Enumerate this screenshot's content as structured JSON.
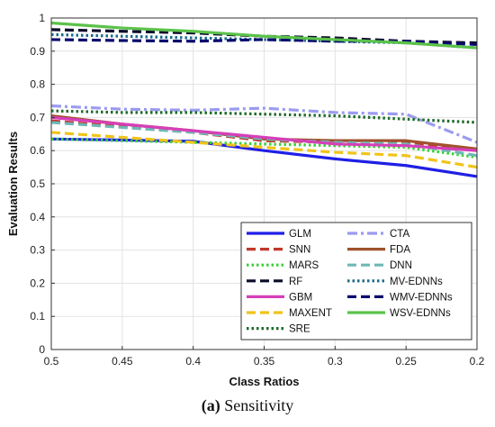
{
  "chart_data": {
    "type": "line",
    "xlabel": "Class Ratios",
    "ylabel": "Evaluation Results",
    "x": [
      0.5,
      0.45,
      0.4,
      0.35,
      0.3,
      0.25,
      0.2
    ],
    "xlim": [
      0.5,
      0.2
    ],
    "ylim": [
      0,
      1
    ],
    "x_ticks": [
      "0.5",
      "0.45",
      "0.4",
      "0.35",
      "0.3",
      "0.25",
      "0.2"
    ],
    "y_ticks": [
      "0",
      "0.1",
      "0.2",
      "0.3",
      "0.4",
      "0.5",
      "0.6",
      "0.7",
      "0.8",
      "0.9",
      "1"
    ],
    "grid": true,
    "legend_position": "bottom-right",
    "series": [
      {
        "name": "GLM",
        "color": "#1f1fe6",
        "dash": "solid",
        "values": [
          0.635,
          0.632,
          0.628,
          0.6,
          0.575,
          0.555,
          0.522
        ]
      },
      {
        "name": "CTA",
        "color": "#9b9bf0",
        "dash": "dashdot",
        "values": [
          0.735,
          0.725,
          0.722,
          0.728,
          0.715,
          0.71,
          0.625
        ]
      },
      {
        "name": "SNN",
        "color": "#c0392b",
        "dash": "dash",
        "values": [
          0.69,
          0.672,
          0.655,
          0.63,
          0.625,
          0.625,
          0.6
        ]
      },
      {
        "name": "FDA",
        "color": "#a0522d",
        "dash": "solid",
        "values": [
          0.705,
          0.68,
          0.66,
          0.635,
          0.63,
          0.63,
          0.605
        ]
      },
      {
        "name": "MARS",
        "color": "#3ad13a",
        "dash": "dot",
        "values": [
          0.635,
          0.63,
          0.625,
          0.62,
          0.615,
          0.61,
          0.58
        ]
      },
      {
        "name": "DNN",
        "color": "#6fb7b7",
        "dash": "dash",
        "values": [
          0.685,
          0.67,
          0.655,
          0.635,
          0.625,
          0.62,
          0.585
        ]
      },
      {
        "name": "RF",
        "color": "#0b0b2a",
        "dash": "dash",
        "values": [
          0.965,
          0.96,
          0.955,
          0.945,
          0.94,
          0.93,
          0.925
        ]
      },
      {
        "name": "MV-EDNNs",
        "color": "#1a6b8a",
        "dash": "dot",
        "values": [
          0.95,
          0.945,
          0.94,
          0.935,
          0.93,
          0.925,
          0.91
        ]
      },
      {
        "name": "GBM",
        "color": "#d63fb8",
        "dash": "solid",
        "values": [
          0.7,
          0.68,
          0.66,
          0.64,
          0.62,
          0.615,
          0.6
        ]
      },
      {
        "name": "WMV-EDNNs",
        "color": "#0a0a6e",
        "dash": "dash",
        "values": [
          0.935,
          0.932,
          0.93,
          0.935,
          0.93,
          0.93,
          0.92
        ]
      },
      {
        "name": "MAXENT",
        "color": "#f0c419",
        "dash": "dash",
        "values": [
          0.655,
          0.64,
          0.625,
          0.61,
          0.595,
          0.585,
          0.55
        ]
      },
      {
        "name": "WSV-EDNNs",
        "color": "#5bc24a",
        "dash": "solid",
        "values": [
          0.985,
          0.97,
          0.96,
          0.945,
          0.935,
          0.925,
          0.91
        ]
      },
      {
        "name": "SRE",
        "color": "#1e6b2a",
        "dash": "dot",
        "values": [
          0.72,
          0.715,
          0.715,
          0.71,
          0.705,
          0.695,
          0.685
        ]
      }
    ]
  },
  "caption": {
    "label": "(a)",
    "text": " Sensitivity"
  }
}
